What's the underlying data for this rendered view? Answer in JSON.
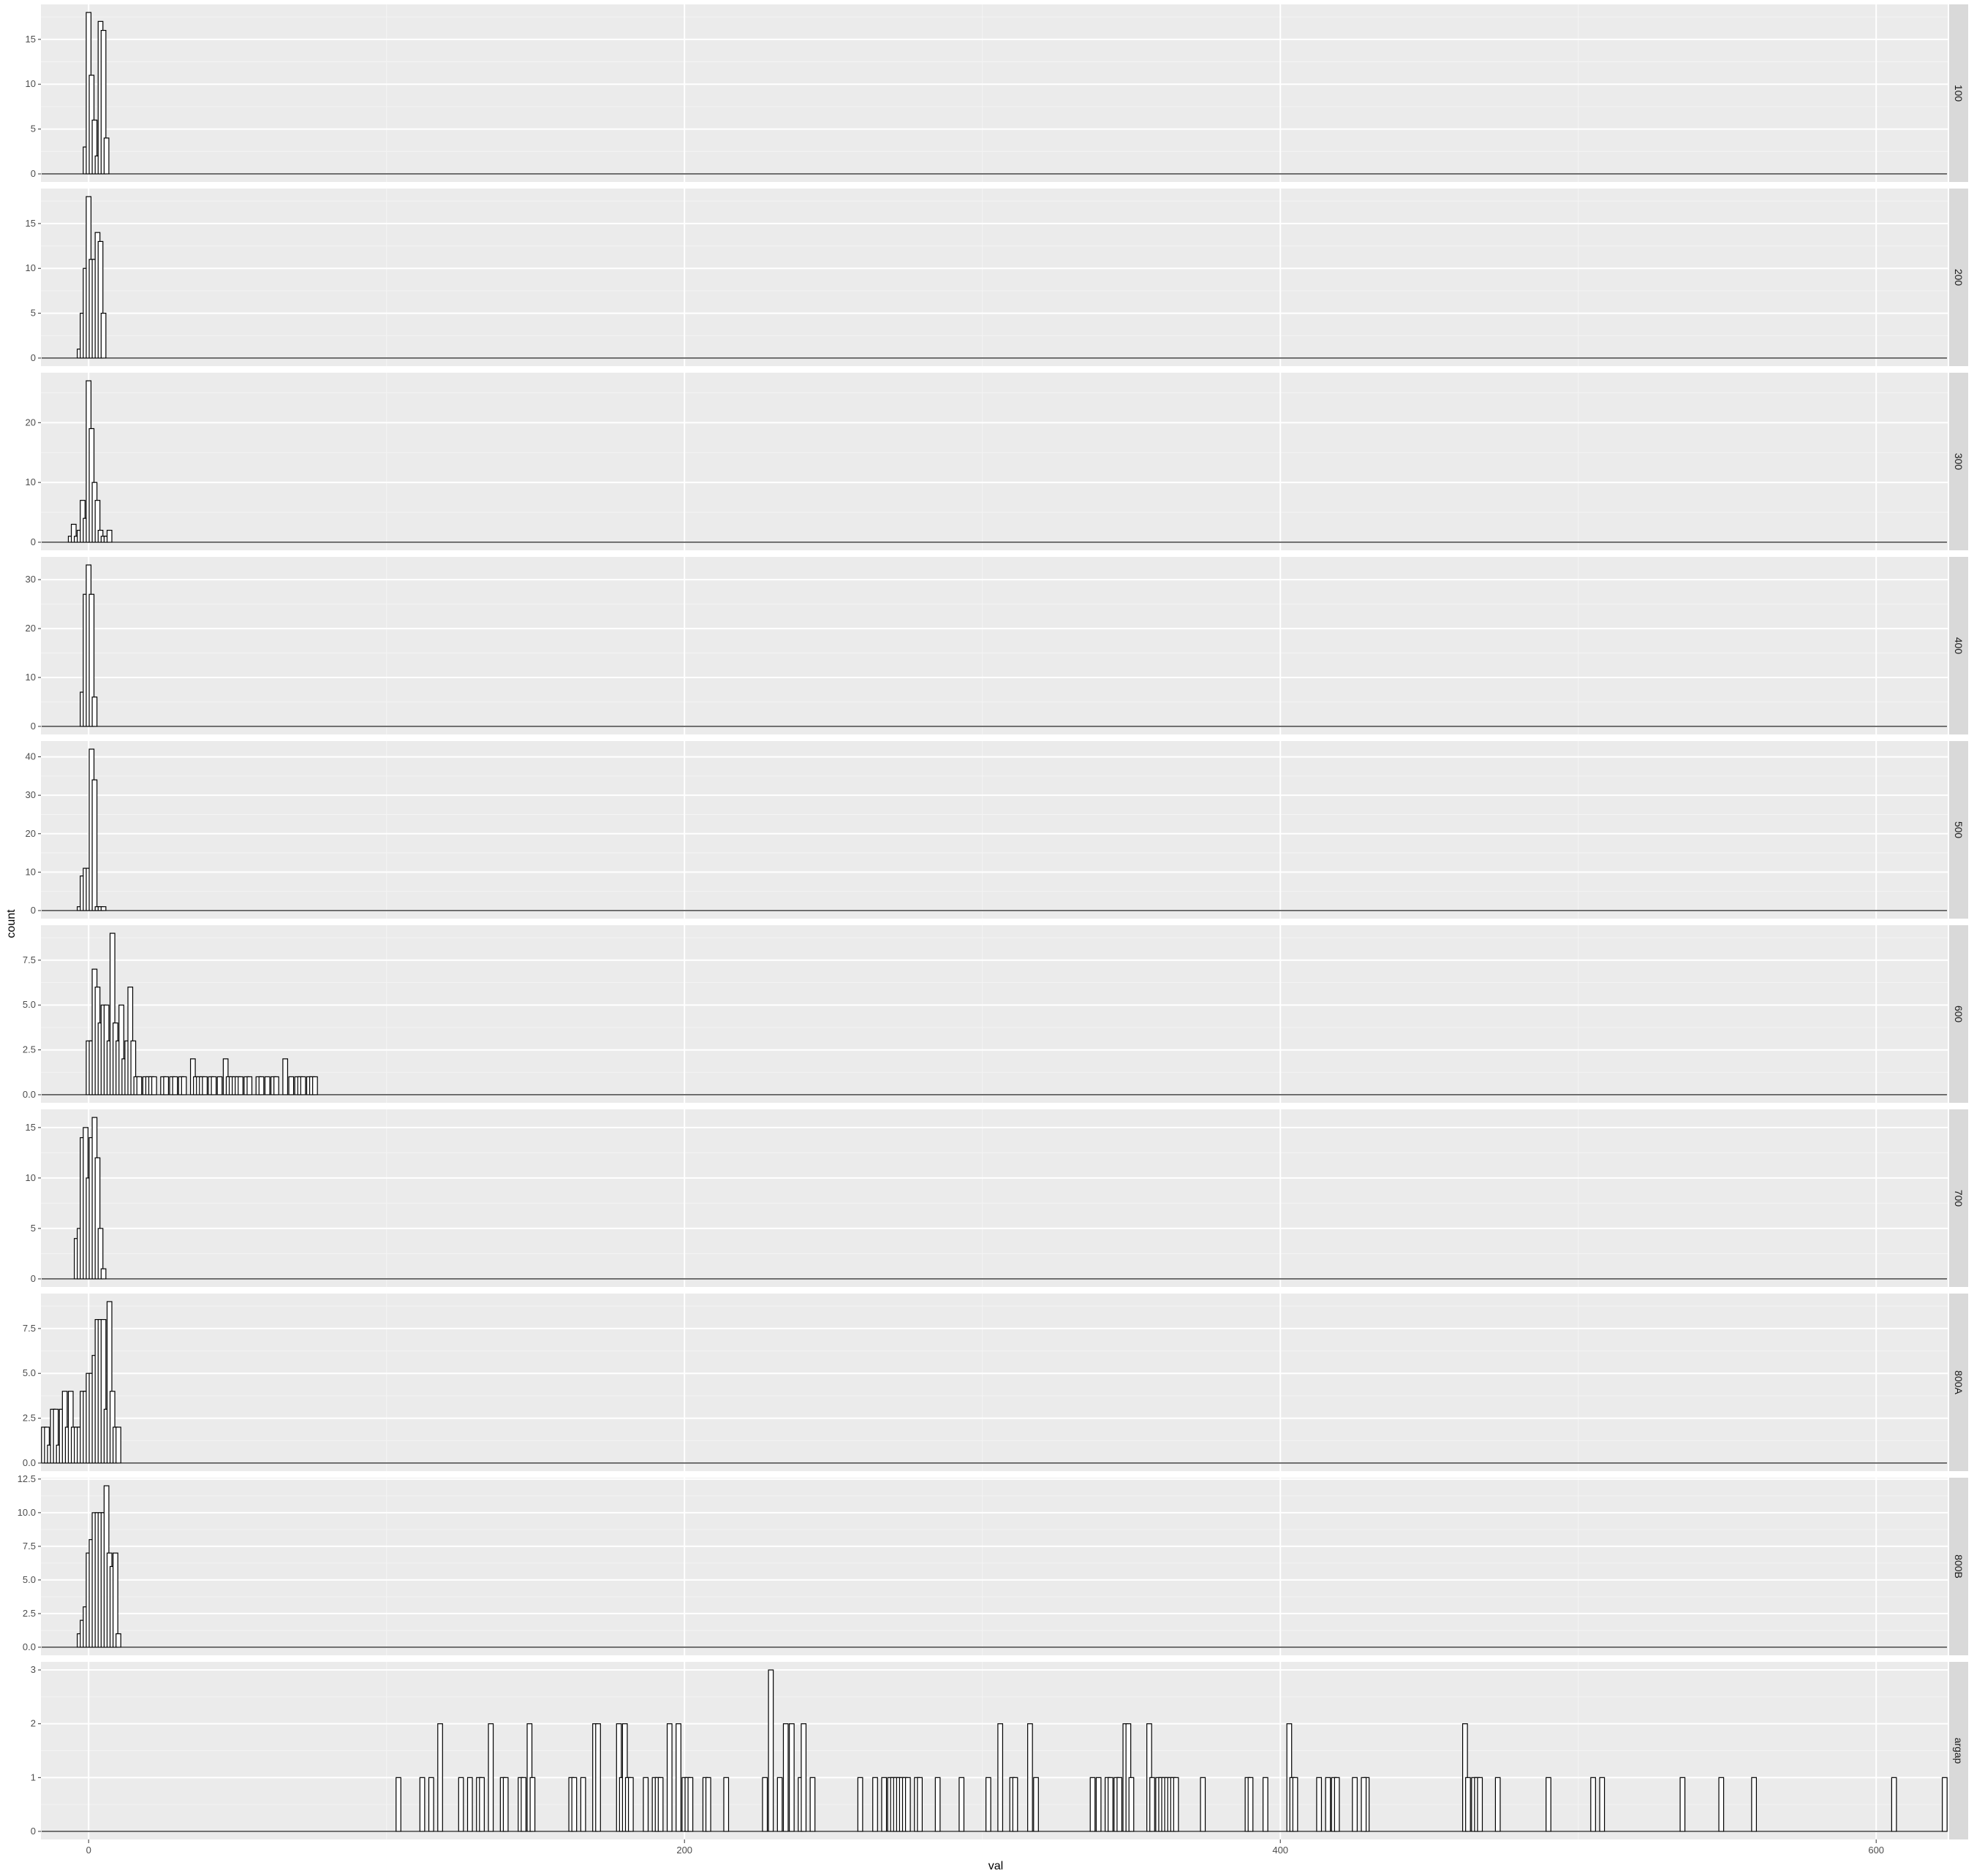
{
  "chart_data": {
    "type": "histogram",
    "xlabel": "val",
    "ylabel": "count",
    "xlim": [
      -16,
      624
    ],
    "x_ticks": [
      0,
      200,
      400,
      600
    ],
    "bin_width": 1.6,
    "baseline_range": [
      -15,
      623
    ],
    "panel_bg": "#ebebeb",
    "strip_bg": "#d9d9d9",
    "grid_major": "#ffffff",
    "bar_fill": "#ffffff",
    "bar_stroke": "#000000",
    "panels": [
      {
        "label": "100",
        "ylim": [
          -0.9,
          18.9
        ],
        "y_ticks": [
          0,
          5,
          10,
          15
        ],
        "y_tick_labels": [
          "0",
          "5",
          "10",
          "15"
        ],
        "bars": [
          [
            -1,
            3
          ],
          [
            0,
            18
          ],
          [
            1,
            11
          ],
          [
            2,
            6
          ],
          [
            3,
            2
          ],
          [
            4,
            17
          ],
          [
            5,
            16
          ],
          [
            6,
            4
          ]
        ]
      },
      {
        "label": "200",
        "ylim": [
          -0.9,
          18.9
        ],
        "y_ticks": [
          0,
          5,
          10,
          15
        ],
        "y_tick_labels": [
          "0",
          "5",
          "10",
          "15"
        ],
        "bars": [
          [
            -3,
            1
          ],
          [
            -2,
            5
          ],
          [
            -1,
            10
          ],
          [
            0,
            18
          ],
          [
            1,
            11
          ],
          [
            2,
            11
          ],
          [
            3,
            14
          ],
          [
            4,
            13
          ],
          [
            5,
            5
          ]
        ]
      },
      {
        "label": "300",
        "ylim": [
          -1.35,
          28.35
        ],
        "y_ticks": [
          0,
          10,
          20
        ],
        "y_tick_labels": [
          "0",
          "10",
          "20"
        ],
        "bars": [
          [
            -6,
            1
          ],
          [
            -5,
            3
          ],
          [
            -4,
            1
          ],
          [
            -3,
            2
          ],
          [
            -2,
            7
          ],
          [
            -1,
            4
          ],
          [
            0,
            27
          ],
          [
            1,
            19
          ],
          [
            2,
            10
          ],
          [
            3,
            7
          ],
          [
            4,
            2
          ],
          [
            5,
            1
          ],
          [
            6,
            1
          ],
          [
            7,
            2
          ]
        ]
      },
      {
        "label": "400",
        "ylim": [
          -1.65,
          34.65
        ],
        "y_ticks": [
          0,
          10,
          20,
          30
        ],
        "y_tick_labels": [
          "0",
          "10",
          "20",
          "30"
        ],
        "bars": [
          [
            -2,
            7
          ],
          [
            -1,
            27
          ],
          [
            0,
            33
          ],
          [
            1,
            27
          ],
          [
            2,
            6
          ]
        ]
      },
      {
        "label": "500",
        "ylim": [
          -2.1,
          44.1
        ],
        "y_ticks": [
          0,
          10,
          20,
          30,
          40
        ],
        "y_tick_labels": [
          "0",
          "10",
          "20",
          "30",
          "40"
        ],
        "bars": [
          [
            -3,
            1
          ],
          [
            -2,
            9
          ],
          [
            -1,
            11
          ],
          [
            0,
            11
          ],
          [
            1,
            42
          ],
          [
            2,
            34
          ],
          [
            3,
            1
          ],
          [
            4,
            1
          ],
          [
            5,
            1
          ]
        ]
      },
      {
        "label": "600",
        "ylim": [
          -0.45,
          9.45
        ],
        "y_ticks": [
          0,
          2.5,
          5,
          7.5
        ],
        "y_tick_labels": [
          "0.0",
          "2.5",
          "5.0",
          "7.5"
        ],
        "bars": [
          [
            0,
            3
          ],
          [
            1,
            3
          ],
          [
            2,
            7
          ],
          [
            3,
            6
          ],
          [
            4,
            4
          ],
          [
            5,
            5
          ],
          [
            6,
            5
          ],
          [
            7,
            3
          ],
          [
            8,
            9
          ],
          [
            9,
            4
          ],
          [
            10,
            3
          ],
          [
            11,
            5
          ],
          [
            12,
            2
          ],
          [
            13,
            3
          ],
          [
            14,
            6
          ],
          [
            15,
            3
          ],
          [
            16,
            1
          ],
          [
            17,
            1
          ],
          [
            19,
            1
          ],
          [
            20,
            1
          ],
          [
            21,
            1
          ],
          [
            22,
            1
          ],
          [
            25,
            1
          ],
          [
            26,
            1
          ],
          [
            28,
            1
          ],
          [
            29,
            1
          ],
          [
            31,
            1
          ],
          [
            32,
            1
          ],
          [
            35,
            2
          ],
          [
            36,
            1
          ],
          [
            37,
            1
          ],
          [
            38,
            1
          ],
          [
            39,
            1
          ],
          [
            41,
            1
          ],
          [
            42,
            1
          ],
          [
            44,
            1
          ],
          [
            46,
            2
          ],
          [
            47,
            1
          ],
          [
            48,
            1
          ],
          [
            49,
            1
          ],
          [
            50,
            1
          ],
          [
            51,
            1
          ],
          [
            53,
            1
          ],
          [
            54,
            1
          ],
          [
            57,
            1
          ],
          [
            58,
            1
          ],
          [
            60,
            1
          ],
          [
            62,
            1
          ],
          [
            63,
            1
          ],
          [
            66,
            2
          ],
          [
            68,
            1
          ],
          [
            70,
            1
          ],
          [
            71,
            1
          ],
          [
            72,
            1
          ],
          [
            74,
            1
          ],
          [
            75,
            1
          ],
          [
            76,
            1
          ]
        ]
      },
      {
        "label": "700",
        "ylim": [
          -0.8,
          16.8
        ],
        "y_ticks": [
          0,
          5,
          10,
          15
        ],
        "y_tick_labels": [
          "0",
          "5",
          "10",
          "15"
        ],
        "bars": [
          [
            -4,
            4
          ],
          [
            -3,
            5
          ],
          [
            -2,
            14
          ],
          [
            -1,
            15
          ],
          [
            0,
            10
          ],
          [
            1,
            14
          ],
          [
            2,
            16
          ],
          [
            3,
            12
          ],
          [
            4,
            5
          ],
          [
            5,
            1
          ]
        ]
      },
      {
        "label": "800A",
        "ylim": [
          -0.45,
          9.45
        ],
        "y_ticks": [
          0,
          2.5,
          5,
          7.5
        ],
        "y_tick_labels": [
          "0.0",
          "2.5",
          "5.0",
          "7.5"
        ],
        "bars": [
          [
            -15,
            2
          ],
          [
            -14,
            2
          ],
          [
            -13,
            1
          ],
          [
            -12,
            3
          ],
          [
            -11,
            3
          ],
          [
            -10,
            1
          ],
          [
            -9,
            3
          ],
          [
            -8,
            4
          ],
          [
            -7,
            2
          ],
          [
            -6,
            4
          ],
          [
            -5,
            2
          ],
          [
            -4,
            2
          ],
          [
            -3,
            2
          ],
          [
            -2,
            4
          ],
          [
            -1,
            4
          ],
          [
            0,
            5
          ],
          [
            1,
            5
          ],
          [
            2,
            6
          ],
          [
            3,
            8
          ],
          [
            4,
            8
          ],
          [
            5,
            8
          ],
          [
            6,
            3
          ],
          [
            7,
            9
          ],
          [
            8,
            4
          ],
          [
            9,
            2
          ],
          [
            10,
            2
          ]
        ]
      },
      {
        "label": "800B",
        "ylim": [
          -0.6,
          12.6
        ],
        "y_ticks": [
          0,
          2.5,
          5,
          7.5,
          10,
          12.5
        ],
        "y_tick_labels": [
          "0.0",
          "2.5",
          "5.0",
          "7.5",
          "10.0",
          "12.5"
        ],
        "bars": [
          [
            -3,
            1
          ],
          [
            -2,
            2
          ],
          [
            -1,
            3
          ],
          [
            0,
            7
          ],
          [
            1,
            8
          ],
          [
            2,
            10
          ],
          [
            3,
            10
          ],
          [
            4,
            10
          ],
          [
            5,
            10
          ],
          [
            6,
            12
          ],
          [
            7,
            7
          ],
          [
            8,
            6
          ],
          [
            9,
            7
          ],
          [
            10,
            1
          ]
        ]
      },
      {
        "label": "argap",
        "ylim": [
          -0.15,
          3.15
        ],
        "y_ticks": [
          0,
          1,
          2,
          3
        ],
        "y_tick_labels": [
          "0",
          "1",
          "2",
          "3"
        ],
        "bars": [
          [
            104,
            1
          ],
          [
            112,
            1
          ],
          [
            115,
            1
          ],
          [
            118,
            2
          ],
          [
            125,
            1
          ],
          [
            128,
            1
          ],
          [
            131,
            1
          ],
          [
            132,
            1
          ],
          [
            135,
            2
          ],
          [
            139,
            1
          ],
          [
            140,
            1
          ],
          [
            145,
            1
          ],
          [
            146,
            1
          ],
          [
            148,
            2
          ],
          [
            149,
            1
          ],
          [
            162,
            1
          ],
          [
            163,
            1
          ],
          [
            166,
            1
          ],
          [
            170,
            2
          ],
          [
            171,
            2
          ],
          [
            178,
            2
          ],
          [
            179,
            1
          ],
          [
            180,
            2
          ],
          [
            181,
            1
          ],
          [
            182,
            1
          ],
          [
            187,
            1
          ],
          [
            190,
            1
          ],
          [
            191,
            1
          ],
          [
            192,
            1
          ],
          [
            195,
            2
          ],
          [
            198,
            2
          ],
          [
            200,
            1
          ],
          [
            201,
            1
          ],
          [
            202,
            1
          ],
          [
            207,
            1
          ],
          [
            208,
            1
          ],
          [
            214,
            1
          ],
          [
            227,
            1
          ],
          [
            229,
            3
          ],
          [
            232,
            1
          ],
          [
            234,
            2
          ],
          [
            236,
            2
          ],
          [
            239,
            1
          ],
          [
            240,
            2
          ],
          [
            243,
            1
          ],
          [
            259,
            1
          ],
          [
            264,
            1
          ],
          [
            267,
            1
          ],
          [
            269,
            1
          ],
          [
            270,
            1
          ],
          [
            271,
            1
          ],
          [
            272,
            1
          ],
          [
            273,
            1
          ],
          [
            274,
            1
          ],
          [
            275,
            1
          ],
          [
            278,
            1
          ],
          [
            279,
            1
          ],
          [
            285,
            1
          ],
          [
            293,
            1
          ],
          [
            302,
            1
          ],
          [
            306,
            2
          ],
          [
            310,
            1
          ],
          [
            311,
            1
          ],
          [
            316,
            2
          ],
          [
            318,
            1
          ],
          [
            337,
            1
          ],
          [
            339,
            1
          ],
          [
            342,
            1
          ],
          [
            343,
            1
          ],
          [
            345,
            1
          ],
          [
            346,
            1
          ],
          [
            348,
            2
          ],
          [
            349,
            2
          ],
          [
            350,
            1
          ],
          [
            356,
            2
          ],
          [
            357,
            1
          ],
          [
            359,
            1
          ],
          [
            360,
            1
          ],
          [
            361,
            1
          ],
          [
            362,
            1
          ],
          [
            363,
            1
          ],
          [
            364,
            1
          ],
          [
            365,
            1
          ],
          [
            374,
            1
          ],
          [
            389,
            1
          ],
          [
            390,
            1
          ],
          [
            395,
            1
          ],
          [
            403,
            2
          ],
          [
            404,
            1
          ],
          [
            405,
            1
          ],
          [
            413,
            1
          ],
          [
            416,
            1
          ],
          [
            418,
            1
          ],
          [
            419,
            1
          ],
          [
            425,
            1
          ],
          [
            429,
            1
          ],
          [
            428,
            1
          ],
          [
            462,
            2
          ],
          [
            463,
            1
          ],
          [
            465,
            1
          ],
          [
            466,
            1
          ],
          [
            467,
            1
          ],
          [
            473,
            1
          ],
          [
            490,
            1
          ],
          [
            505,
            1
          ],
          [
            508,
            1
          ],
          [
            535,
            1
          ],
          [
            548,
            1
          ],
          [
            559,
            1
          ],
          [
            606,
            1
          ],
          [
            623,
            1
          ]
        ]
      }
    ]
  }
}
